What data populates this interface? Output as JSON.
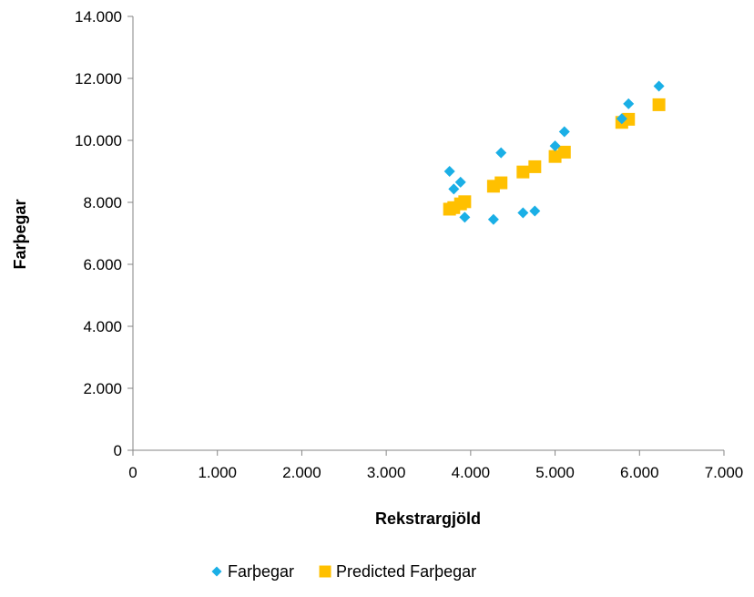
{
  "chart_data": {
    "type": "scatter",
    "title": "",
    "xlabel": "Rekstrargjöld",
    "ylabel": "Farþegar",
    "xlim": [
      0,
      7000
    ],
    "ylim": [
      0,
      14000
    ],
    "x_ticks": [
      "0",
      "1.000",
      "2.000",
      "3.000",
      "4.000",
      "5.000",
      "6.000",
      "7.000"
    ],
    "y_ticks": [
      "0",
      "2.000",
      "4.000",
      "6.000",
      "8.000",
      "10.000",
      "12.000",
      "14.000"
    ],
    "grid": false,
    "legend_position": "bottom",
    "series": [
      {
        "name": "Farþegar",
        "marker": "diamond",
        "color": "#1AAFE6",
        "points": [
          {
            "x": 3750,
            "y": 9000
          },
          {
            "x": 3800,
            "y": 8430
          },
          {
            "x": 3880,
            "y": 8650
          },
          {
            "x": 3930,
            "y": 7520
          },
          {
            "x": 4270,
            "y": 7450
          },
          {
            "x": 4360,
            "y": 9600
          },
          {
            "x": 4620,
            "y": 7660
          },
          {
            "x": 4760,
            "y": 7720
          },
          {
            "x": 5000,
            "y": 9820
          },
          {
            "x": 5110,
            "y": 10280
          },
          {
            "x": 5790,
            "y": 10700
          },
          {
            "x": 5870,
            "y": 11180
          },
          {
            "x": 6230,
            "y": 11750
          }
        ]
      },
      {
        "name": "Predicted Farþegar",
        "marker": "square",
        "color": "#FFC000",
        "points": [
          {
            "x": 3750,
            "y": 7780
          },
          {
            "x": 3800,
            "y": 7830
          },
          {
            "x": 3880,
            "y": 7950
          },
          {
            "x": 3930,
            "y": 8020
          },
          {
            "x": 4270,
            "y": 8520
          },
          {
            "x": 4360,
            "y": 8630
          },
          {
            "x": 4620,
            "y": 8980
          },
          {
            "x": 4760,
            "y": 9150
          },
          {
            "x": 5000,
            "y": 9480
          },
          {
            "x": 5110,
            "y": 9620
          },
          {
            "x": 5790,
            "y": 10580
          },
          {
            "x": 5870,
            "y": 10680
          },
          {
            "x": 6230,
            "y": 11150
          }
        ]
      }
    ]
  }
}
